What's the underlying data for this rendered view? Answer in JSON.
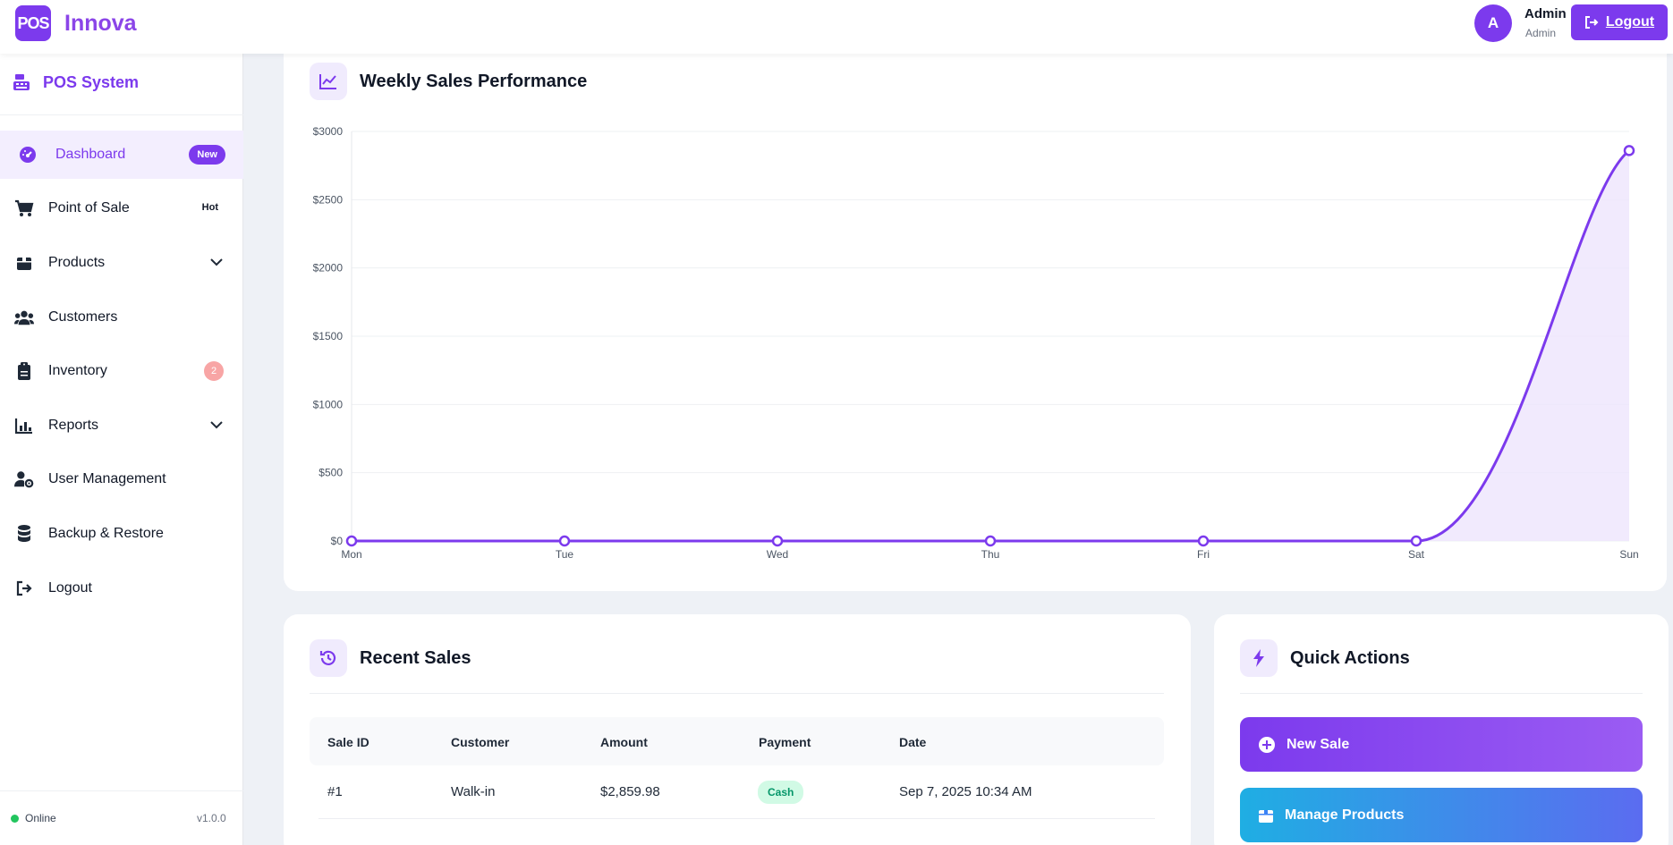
{
  "header": {
    "logo_text": "POS",
    "brand": "Innova",
    "avatar_initial": "A",
    "user_name": "Admin",
    "user_role": "Admin",
    "logout_label": "Logout"
  },
  "sidebar": {
    "title": "POS System",
    "items": [
      {
        "label": "Dashboard",
        "icon": "gauge-icon",
        "badge": "New"
      },
      {
        "label": "Point of Sale",
        "icon": "cart-icon",
        "badge": "Hot"
      },
      {
        "label": "Products",
        "icon": "box-icon"
      },
      {
        "label": "Customers",
        "icon": "users-icon"
      },
      {
        "label": "Inventory",
        "icon": "clipboard-icon",
        "badge": "2"
      },
      {
        "label": "Reports",
        "icon": "chart-bar-icon"
      },
      {
        "label": "User Management",
        "icon": "user-gear-icon"
      },
      {
        "label": "Backup & Restore",
        "icon": "database-icon"
      },
      {
        "label": "Logout",
        "icon": "sign-out-icon"
      }
    ],
    "status": "Online",
    "version": "v1.0.0"
  },
  "chart_card": {
    "title": "Weekly Sales Performance"
  },
  "chart_data": {
    "type": "area",
    "title": "Weekly Sales Performance",
    "categories": [
      "Mon",
      "Tue",
      "Wed",
      "Thu",
      "Fri",
      "Sat",
      "Sun"
    ],
    "values": [
      0,
      0,
      0,
      0,
      0,
      0,
      2859.98
    ],
    "y_ticks": [
      "$0",
      "$500",
      "$1000",
      "$1500",
      "$2000",
      "$2500",
      "$3000"
    ],
    "ylim": [
      0,
      3000
    ],
    "grid": true,
    "legend": "none",
    "colors": {
      "line": "#7c3aed",
      "fill": "#ede5fc"
    }
  },
  "recent_sales": {
    "title": "Recent Sales",
    "columns": [
      "Sale ID",
      "Customer",
      "Amount",
      "Payment",
      "Date"
    ],
    "rows": [
      {
        "id": "#1",
        "customer": "Walk-in",
        "amount": "$2,859.98",
        "payment": "Cash",
        "date": "Sep 7, 2025 10:34 AM"
      }
    ]
  },
  "quick_actions": {
    "title": "Quick Actions",
    "new_sale": "New Sale",
    "manage_products": "Manage Products"
  },
  "colors": {
    "accent": "#7c3aed",
    "background": "#eef1f6",
    "success": "#22c55e"
  }
}
